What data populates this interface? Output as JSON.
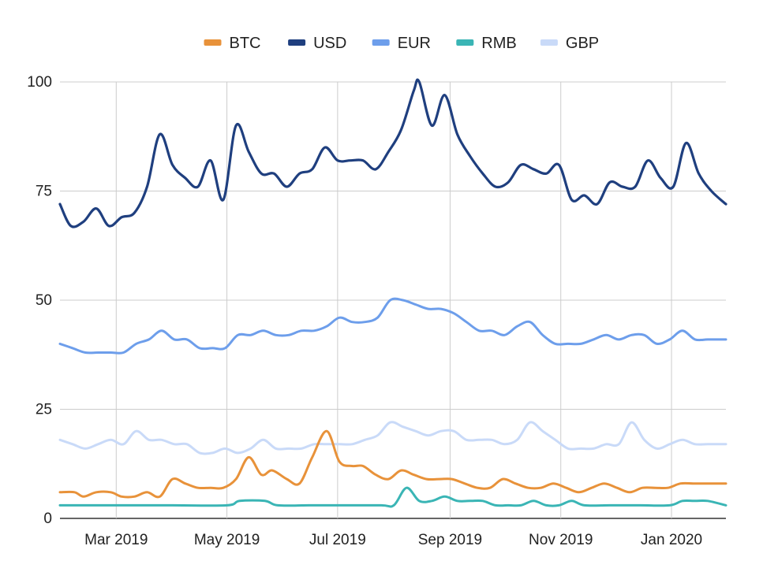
{
  "chart_data": {
    "type": "line",
    "title": "",
    "xlabel": "",
    "ylabel": "",
    "ylim": [
      0,
      100
    ],
    "y_ticks": [
      0,
      25,
      50,
      75,
      100
    ],
    "grid": true,
    "legend": "top",
    "x_range": [
      "2019-01-29",
      "2020-01-31"
    ],
    "x_ticks": [
      {
        "date": "2019-03-01",
        "label": "Mar 2019"
      },
      {
        "date": "2019-05-01",
        "label": "May 2019"
      },
      {
        "date": "2019-07-01",
        "label": "Jul 2019"
      },
      {
        "date": "2019-09-01",
        "label": "Sep 2019"
      },
      {
        "date": "2019-11-01",
        "label": "Nov 2019"
      },
      {
        "date": "2020-01-01",
        "label": "Jan 2020"
      }
    ],
    "series": [
      {
        "name": "BTC",
        "color": "#e8923a",
        "points": [
          [
            "2019-01-29",
            6
          ],
          [
            "2019-02-06",
            6
          ],
          [
            "2019-02-11",
            5
          ],
          [
            "2019-02-18",
            6
          ],
          [
            "2019-02-26",
            6
          ],
          [
            "2019-03-04",
            5
          ],
          [
            "2019-03-11",
            5
          ],
          [
            "2019-03-18",
            6
          ],
          [
            "2019-03-25",
            5
          ],
          [
            "2019-04-01",
            9
          ],
          [
            "2019-04-08",
            8
          ],
          [
            "2019-04-15",
            7
          ],
          [
            "2019-04-22",
            7
          ],
          [
            "2019-04-29",
            7
          ],
          [
            "2019-05-06",
            9
          ],
          [
            "2019-05-13",
            14
          ],
          [
            "2019-05-20",
            10
          ],
          [
            "2019-05-26",
            11
          ],
          [
            "2019-06-03",
            9
          ],
          [
            "2019-06-10",
            8
          ],
          [
            "2019-06-17",
            14
          ],
          [
            "2019-06-25",
            20
          ],
          [
            "2019-07-02",
            13
          ],
          [
            "2019-07-09",
            12
          ],
          [
            "2019-07-15",
            12
          ],
          [
            "2019-07-22",
            10
          ],
          [
            "2019-07-29",
            9
          ],
          [
            "2019-08-05",
            11
          ],
          [
            "2019-08-12",
            10
          ],
          [
            "2019-08-19",
            9
          ],
          [
            "2019-08-26",
            9
          ],
          [
            "2019-09-02",
            9
          ],
          [
            "2019-09-09",
            8
          ],
          [
            "2019-09-16",
            7
          ],
          [
            "2019-09-23",
            7
          ],
          [
            "2019-09-30",
            9
          ],
          [
            "2019-10-07",
            8
          ],
          [
            "2019-10-14",
            7
          ],
          [
            "2019-10-21",
            7
          ],
          [
            "2019-10-28",
            8
          ],
          [
            "2019-11-04",
            7
          ],
          [
            "2019-11-11",
            6
          ],
          [
            "2019-11-18",
            7
          ],
          [
            "2019-11-25",
            8
          ],
          [
            "2019-12-02",
            7
          ],
          [
            "2019-12-09",
            6
          ],
          [
            "2019-12-16",
            7
          ],
          [
            "2019-12-23",
            7
          ],
          [
            "2019-12-30",
            7
          ],
          [
            "2020-01-06",
            8
          ],
          [
            "2020-01-13",
            8
          ],
          [
            "2020-01-20",
            8
          ],
          [
            "2020-01-31",
            8
          ]
        ]
      },
      {
        "name": "USD",
        "color": "#1f3f7f",
        "points": [
          [
            "2019-01-29",
            72
          ],
          [
            "2019-02-04",
            67
          ],
          [
            "2019-02-11",
            68
          ],
          [
            "2019-02-18",
            71
          ],
          [
            "2019-02-25",
            67
          ],
          [
            "2019-03-04",
            69
          ],
          [
            "2019-03-11",
            70
          ],
          [
            "2019-03-18",
            76
          ],
          [
            "2019-03-25",
            88
          ],
          [
            "2019-04-01",
            81
          ],
          [
            "2019-04-08",
            78
          ],
          [
            "2019-04-15",
            76
          ],
          [
            "2019-04-22",
            82
          ],
          [
            "2019-04-29",
            73
          ],
          [
            "2019-05-06",
            90
          ],
          [
            "2019-05-13",
            84
          ],
          [
            "2019-05-20",
            79
          ],
          [
            "2019-05-27",
            79
          ],
          [
            "2019-06-03",
            76
          ],
          [
            "2019-06-10",
            79
          ],
          [
            "2019-06-17",
            80
          ],
          [
            "2019-06-24",
            85
          ],
          [
            "2019-07-01",
            82
          ],
          [
            "2019-07-08",
            82
          ],
          [
            "2019-07-15",
            82
          ],
          [
            "2019-07-22",
            80
          ],
          [
            "2019-07-29",
            84
          ],
          [
            "2019-08-05",
            89
          ],
          [
            "2019-08-12",
            98
          ],
          [
            "2019-08-15",
            100
          ],
          [
            "2019-08-22",
            90
          ],
          [
            "2019-08-29",
            97
          ],
          [
            "2019-09-05",
            88
          ],
          [
            "2019-09-12",
            83
          ],
          [
            "2019-09-19",
            79
          ],
          [
            "2019-09-26",
            76
          ],
          [
            "2019-10-03",
            77
          ],
          [
            "2019-10-10",
            81
          ],
          [
            "2019-10-17",
            80
          ],
          [
            "2019-10-24",
            79
          ],
          [
            "2019-10-31",
            81
          ],
          [
            "2019-11-07",
            73
          ],
          [
            "2019-11-14",
            74
          ],
          [
            "2019-11-21",
            72
          ],
          [
            "2019-11-28",
            77
          ],
          [
            "2019-12-05",
            76
          ],
          [
            "2019-12-12",
            76
          ],
          [
            "2019-12-19",
            82
          ],
          [
            "2019-12-26",
            78
          ],
          [
            "2020-01-02",
            76
          ],
          [
            "2020-01-09",
            86
          ],
          [
            "2020-01-16",
            79
          ],
          [
            "2020-01-23",
            75
          ],
          [
            "2020-01-31",
            72
          ]
        ]
      },
      {
        "name": "EUR",
        "color": "#6d9eeb",
        "points": [
          [
            "2019-01-29",
            40
          ],
          [
            "2019-02-05",
            39
          ],
          [
            "2019-02-12",
            38
          ],
          [
            "2019-02-19",
            38
          ],
          [
            "2019-02-26",
            38
          ],
          [
            "2019-03-05",
            38
          ],
          [
            "2019-03-12",
            40
          ],
          [
            "2019-03-19",
            41
          ],
          [
            "2019-03-26",
            43
          ],
          [
            "2019-04-02",
            41
          ],
          [
            "2019-04-09",
            41
          ],
          [
            "2019-04-16",
            39
          ],
          [
            "2019-04-23",
            39
          ],
          [
            "2019-04-30",
            39
          ],
          [
            "2019-05-07",
            42
          ],
          [
            "2019-05-14",
            42
          ],
          [
            "2019-05-21",
            43
          ],
          [
            "2019-05-28",
            42
          ],
          [
            "2019-06-04",
            42
          ],
          [
            "2019-06-11",
            43
          ],
          [
            "2019-06-18",
            43
          ],
          [
            "2019-06-25",
            44
          ],
          [
            "2019-07-02",
            46
          ],
          [
            "2019-07-09",
            45
          ],
          [
            "2019-07-16",
            45
          ],
          [
            "2019-07-23",
            46
          ],
          [
            "2019-07-30",
            50
          ],
          [
            "2019-08-06",
            50
          ],
          [
            "2019-08-13",
            49
          ],
          [
            "2019-08-20",
            48
          ],
          [
            "2019-08-27",
            48
          ],
          [
            "2019-09-03",
            47
          ],
          [
            "2019-09-10",
            45
          ],
          [
            "2019-09-17",
            43
          ],
          [
            "2019-09-24",
            43
          ],
          [
            "2019-10-01",
            42
          ],
          [
            "2019-10-08",
            44
          ],
          [
            "2019-10-15",
            45
          ],
          [
            "2019-10-22",
            42
          ],
          [
            "2019-10-29",
            40
          ],
          [
            "2019-11-05",
            40
          ],
          [
            "2019-11-12",
            40
          ],
          [
            "2019-11-19",
            41
          ],
          [
            "2019-11-26",
            42
          ],
          [
            "2019-12-03",
            41
          ],
          [
            "2019-12-10",
            42
          ],
          [
            "2019-12-17",
            42
          ],
          [
            "2019-12-24",
            40
          ],
          [
            "2019-12-31",
            41
          ],
          [
            "2020-01-07",
            43
          ],
          [
            "2020-01-14",
            41
          ],
          [
            "2020-01-21",
            41
          ],
          [
            "2020-01-31",
            41
          ]
        ]
      },
      {
        "name": "RMB",
        "color": "#3ab5b5",
        "points": [
          [
            "2019-01-29",
            3
          ],
          [
            "2019-02-15",
            3
          ],
          [
            "2019-03-01",
            3
          ],
          [
            "2019-04-01",
            3
          ],
          [
            "2019-05-01",
            3
          ],
          [
            "2019-05-08",
            4
          ],
          [
            "2019-05-22",
            4
          ],
          [
            "2019-05-29",
            3
          ],
          [
            "2019-06-15",
            3
          ],
          [
            "2019-07-01",
            3
          ],
          [
            "2019-07-25",
            3
          ],
          [
            "2019-08-01",
            3
          ],
          [
            "2019-08-08",
            7
          ],
          [
            "2019-08-15",
            4
          ],
          [
            "2019-08-22",
            4
          ],
          [
            "2019-08-29",
            5
          ],
          [
            "2019-09-05",
            4
          ],
          [
            "2019-09-12",
            4
          ],
          [
            "2019-09-19",
            4
          ],
          [
            "2019-09-26",
            3
          ],
          [
            "2019-10-03",
            3
          ],
          [
            "2019-10-10",
            3
          ],
          [
            "2019-10-17",
            4
          ],
          [
            "2019-10-24",
            3
          ],
          [
            "2019-10-31",
            3
          ],
          [
            "2019-11-07",
            4
          ],
          [
            "2019-11-14",
            3
          ],
          [
            "2019-11-28",
            3
          ],
          [
            "2019-12-15",
            3
          ],
          [
            "2019-12-31",
            3
          ],
          [
            "2020-01-07",
            4
          ],
          [
            "2020-01-14",
            4
          ],
          [
            "2020-01-21",
            4
          ],
          [
            "2020-01-31",
            3
          ]
        ]
      },
      {
        "name": "GBP",
        "color": "#c9daf8",
        "points": [
          [
            "2019-01-29",
            18
          ],
          [
            "2019-02-05",
            17
          ],
          [
            "2019-02-12",
            16
          ],
          [
            "2019-02-19",
            17
          ],
          [
            "2019-02-26",
            18
          ],
          [
            "2019-03-05",
            17
          ],
          [
            "2019-03-12",
            20
          ],
          [
            "2019-03-19",
            18
          ],
          [
            "2019-03-26",
            18
          ],
          [
            "2019-04-02",
            17
          ],
          [
            "2019-04-09",
            17
          ],
          [
            "2019-04-16",
            15
          ],
          [
            "2019-04-23",
            15
          ],
          [
            "2019-04-30",
            16
          ],
          [
            "2019-05-07",
            15
          ],
          [
            "2019-05-14",
            16
          ],
          [
            "2019-05-21",
            18
          ],
          [
            "2019-05-28",
            16
          ],
          [
            "2019-06-04",
            16
          ],
          [
            "2019-06-11",
            16
          ],
          [
            "2019-06-18",
            17
          ],
          [
            "2019-06-25",
            17
          ],
          [
            "2019-07-02",
            17
          ],
          [
            "2019-07-09",
            17
          ],
          [
            "2019-07-16",
            18
          ],
          [
            "2019-07-23",
            19
          ],
          [
            "2019-07-30",
            22
          ],
          [
            "2019-08-06",
            21
          ],
          [
            "2019-08-13",
            20
          ],
          [
            "2019-08-20",
            19
          ],
          [
            "2019-08-27",
            20
          ],
          [
            "2019-09-03",
            20
          ],
          [
            "2019-09-10",
            18
          ],
          [
            "2019-09-17",
            18
          ],
          [
            "2019-09-24",
            18
          ],
          [
            "2019-10-01",
            17
          ],
          [
            "2019-10-08",
            18
          ],
          [
            "2019-10-15",
            22
          ],
          [
            "2019-10-22",
            20
          ],
          [
            "2019-10-29",
            18
          ],
          [
            "2019-11-05",
            16
          ],
          [
            "2019-11-12",
            16
          ],
          [
            "2019-11-19",
            16
          ],
          [
            "2019-11-26",
            17
          ],
          [
            "2019-12-03",
            17
          ],
          [
            "2019-12-10",
            22
          ],
          [
            "2019-12-17",
            18
          ],
          [
            "2019-12-24",
            16
          ],
          [
            "2019-12-31",
            17
          ],
          [
            "2020-01-07",
            18
          ],
          [
            "2020-01-14",
            17
          ],
          [
            "2020-01-21",
            17
          ],
          [
            "2020-01-31",
            17
          ]
        ]
      }
    ]
  }
}
